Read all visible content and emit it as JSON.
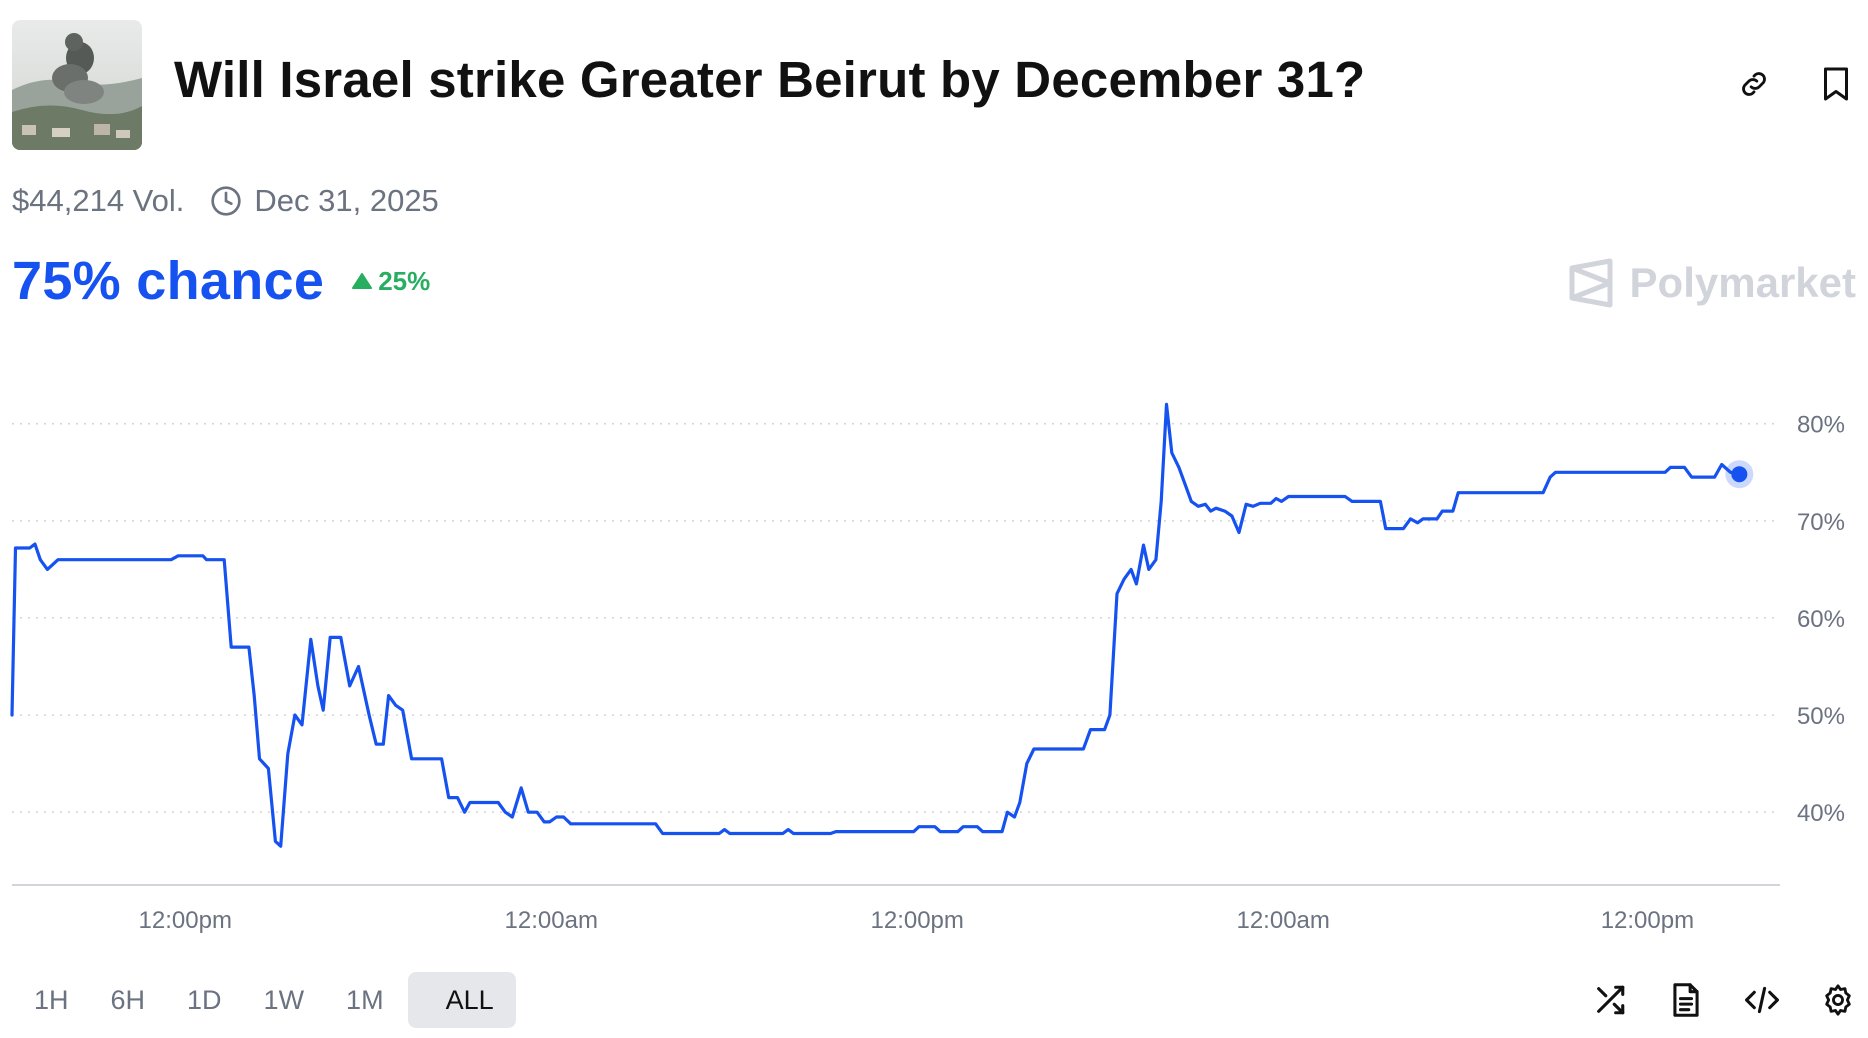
{
  "header": {
    "title": "Will Israel strike Greater Beirut by December 31?",
    "thumbnail_icon": "smoke-plume-photo",
    "actions": [
      {
        "name": "link-icon"
      },
      {
        "name": "bookmark-icon"
      }
    ]
  },
  "meta": {
    "volume": "$44,214 Vol.",
    "end_date": "Dec 31, 2025",
    "clock_icon": "clock-icon"
  },
  "probability": {
    "chance": "75% chance",
    "change": "25%",
    "change_direction": "up",
    "colors": {
      "chance": "#1652f0",
      "up": "#27ae60"
    }
  },
  "brand": {
    "name": "Polymarket",
    "color": "#d1d5db"
  },
  "chart_data": {
    "type": "line",
    "y_ticks": [
      "80%",
      "70%",
      "60%",
      "50%",
      "40%"
    ],
    "y_tick_values": [
      80,
      70,
      60,
      50,
      40
    ],
    "x_tick_labels": [
      "12:00pm",
      "12:00am",
      "12:00pm",
      "12:00am",
      "12:00pm"
    ],
    "x_tick_positions": [
      0.098,
      0.305,
      0.512,
      0.719,
      0.925
    ],
    "ylim": [
      32.5,
      84.5
    ],
    "grid": true,
    "line_color": "#1652f0",
    "series": [
      {
        "points": [
          [
            0.0,
            50.0
          ],
          [
            0.002,
            67.2
          ],
          [
            0.01,
            67.2
          ],
          [
            0.013,
            67.6
          ],
          [
            0.016,
            66.0
          ],
          [
            0.02,
            65.0
          ],
          [
            0.026,
            66.0
          ],
          [
            0.09,
            66.0
          ],
          [
            0.094,
            66.4
          ],
          [
            0.108,
            66.4
          ],
          [
            0.11,
            66.0
          ],
          [
            0.12,
            66.0
          ],
          [
            0.124,
            57.0
          ],
          [
            0.134,
            57.0
          ],
          [
            0.137,
            52.0
          ],
          [
            0.14,
            45.5
          ],
          [
            0.145,
            44.5
          ],
          [
            0.149,
            37.0
          ],
          [
            0.152,
            36.5
          ],
          [
            0.156,
            46.0
          ],
          [
            0.16,
            50.0
          ],
          [
            0.164,
            49.0
          ],
          [
            0.169,
            57.8
          ],
          [
            0.173,
            53.0
          ],
          [
            0.176,
            50.5
          ],
          [
            0.18,
            58.0
          ],
          [
            0.186,
            58.0
          ],
          [
            0.191,
            53.0
          ],
          [
            0.196,
            55.0
          ],
          [
            0.202,
            50.0
          ],
          [
            0.206,
            47.0
          ],
          [
            0.21,
            47.0
          ],
          [
            0.213,
            52.0
          ],
          [
            0.217,
            51.0
          ],
          [
            0.221,
            50.5
          ],
          [
            0.226,
            45.5
          ],
          [
            0.243,
            45.5
          ],
          [
            0.247,
            41.5
          ],
          [
            0.252,
            41.5
          ],
          [
            0.256,
            40.0
          ],
          [
            0.259,
            41.0
          ],
          [
            0.275,
            41.0
          ],
          [
            0.279,
            40.0
          ],
          [
            0.283,
            39.5
          ],
          [
            0.288,
            42.5
          ],
          [
            0.292,
            40.0
          ],
          [
            0.297,
            40.0
          ],
          [
            0.301,
            39.0
          ],
          [
            0.304,
            39.0
          ],
          [
            0.308,
            39.5
          ],
          [
            0.312,
            39.5
          ],
          [
            0.316,
            38.8
          ],
          [
            0.364,
            38.8
          ],
          [
            0.368,
            37.8
          ],
          [
            0.4,
            37.8
          ],
          [
            0.403,
            38.2
          ],
          [
            0.406,
            37.8
          ],
          [
            0.436,
            37.8
          ],
          [
            0.439,
            38.2
          ],
          [
            0.442,
            37.8
          ],
          [
            0.463,
            37.8
          ],
          [
            0.466,
            38.0
          ],
          [
            0.51,
            38.0
          ],
          [
            0.513,
            38.5
          ],
          [
            0.522,
            38.5
          ],
          [
            0.525,
            38.0
          ],
          [
            0.535,
            38.0
          ],
          [
            0.538,
            38.5
          ],
          [
            0.546,
            38.5
          ],
          [
            0.549,
            38.0
          ],
          [
            0.56,
            38.0
          ],
          [
            0.563,
            40.0
          ],
          [
            0.567,
            39.5
          ],
          [
            0.57,
            41.0
          ],
          [
            0.574,
            45.0
          ],
          [
            0.578,
            46.5
          ],
          [
            0.606,
            46.5
          ],
          [
            0.61,
            48.5
          ],
          [
            0.618,
            48.5
          ],
          [
            0.621,
            50.0
          ],
          [
            0.625,
            62.5
          ],
          [
            0.629,
            64.0
          ],
          [
            0.633,
            65.0
          ],
          [
            0.636,
            63.5
          ],
          [
            0.64,
            67.5
          ],
          [
            0.643,
            65.0
          ],
          [
            0.647,
            66.0
          ],
          [
            0.65,
            72.0
          ],
          [
            0.653,
            82.0
          ],
          [
            0.656,
            77.0
          ],
          [
            0.66,
            75.5
          ],
          [
            0.664,
            73.5
          ],
          [
            0.667,
            72.0
          ],
          [
            0.671,
            71.5
          ],
          [
            0.675,
            71.7
          ],
          [
            0.678,
            71.0
          ],
          [
            0.681,
            71.3
          ],
          [
            0.686,
            71.0
          ],
          [
            0.69,
            70.5
          ],
          [
            0.694,
            68.8
          ],
          [
            0.698,
            71.7
          ],
          [
            0.702,
            71.5
          ],
          [
            0.706,
            71.8
          ],
          [
            0.712,
            71.8
          ],
          [
            0.715,
            72.3
          ],
          [
            0.718,
            72.0
          ],
          [
            0.722,
            72.5
          ],
          [
            0.754,
            72.5
          ],
          [
            0.758,
            72.0
          ],
          [
            0.774,
            72.0
          ],
          [
            0.777,
            69.2
          ],
          [
            0.787,
            69.2
          ],
          [
            0.791,
            70.2
          ],
          [
            0.795,
            69.8
          ],
          [
            0.798,
            70.2
          ],
          [
            0.806,
            70.2
          ],
          [
            0.809,
            71.0
          ],
          [
            0.815,
            71.0
          ],
          [
            0.818,
            72.9
          ],
          [
            0.866,
            72.9
          ],
          [
            0.87,
            74.5
          ],
          [
            0.873,
            75.0
          ],
          [
            0.935,
            75.0
          ],
          [
            0.938,
            75.5
          ],
          [
            0.946,
            75.5
          ],
          [
            0.95,
            74.5
          ],
          [
            0.963,
            74.5
          ],
          [
            0.967,
            75.8
          ],
          [
            0.972,
            75.0
          ],
          [
            0.977,
            74.8
          ]
        ]
      }
    ],
    "current_value": 74.8
  },
  "ranges": {
    "items": [
      "1H",
      "6H",
      "1D",
      "1W",
      "1M",
      "ALL"
    ],
    "active": "ALL"
  },
  "tools": [
    {
      "name": "shuffle-icon"
    },
    {
      "name": "document-icon"
    },
    {
      "name": "embed-code-icon"
    },
    {
      "name": "settings-gear-icon"
    }
  ]
}
